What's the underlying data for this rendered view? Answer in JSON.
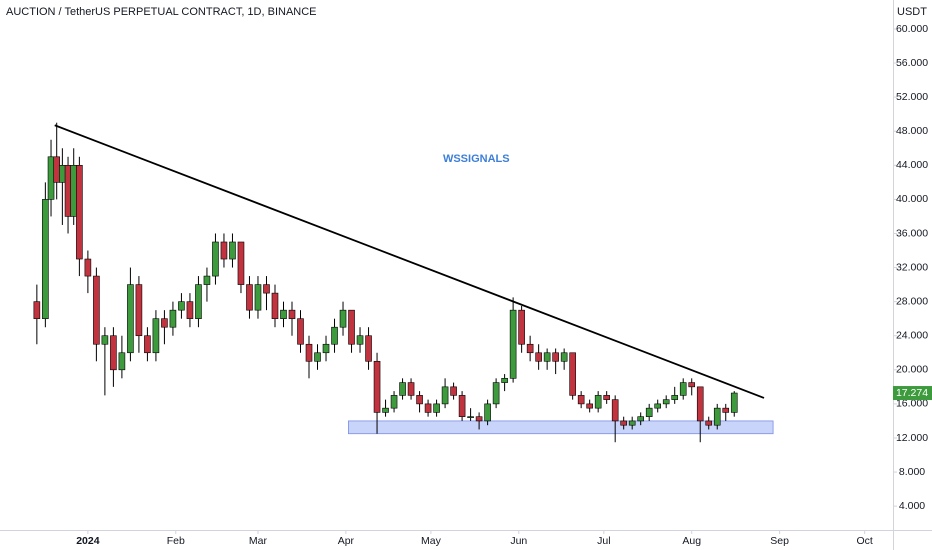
{
  "chart_data": {
    "type": "candlestick",
    "title": "AUCTION / TetherUS PERPETUAL CONTRACT, 1D, BINANCE",
    "y_axis_label": "USDT",
    "annotation": {
      "text": "WSSIGNALS",
      "x": 137,
      "y": 44.7,
      "color": "#3d7fd8"
    },
    "trendline": {
      "x": [
        -11.7,
        238.5
      ],
      "y": [
        48.7,
        16.7
      ],
      "color": "#000000"
    },
    "zone": {
      "x": [
        91.9,
        241.7
      ],
      "y": [
        12.5,
        14.0
      ],
      "color": "#c9d4fa",
      "border": "#7b8fe6"
    },
    "last_price": 17.274,
    "up_color": "#3d9a3d",
    "down_color": "#c23340",
    "xlim": [
      -31,
      284
    ],
    "xticks": [
      {
        "value": 0,
        "label": "2024"
      },
      {
        "value": 31,
        "label": "Feb"
      },
      {
        "value": 60,
        "label": "Mar"
      },
      {
        "value": 91,
        "label": "Apr"
      },
      {
        "value": 121,
        "label": "May"
      },
      {
        "value": 152,
        "label": "Jun"
      },
      {
        "value": 182,
        "label": "Jul"
      },
      {
        "value": 213,
        "label": "Aug"
      },
      {
        "value": 244,
        "label": "Sep"
      },
      {
        "value": 274,
        "label": "Oct"
      }
    ],
    "ylim": [
      1.2,
      63.4
    ],
    "yticks": [
      {
        "value": 4,
        "label": "4.000"
      },
      {
        "value": 8,
        "label": "8.000"
      },
      {
        "value": 12,
        "label": "12.000"
      },
      {
        "value": 16,
        "label": "16.000"
      },
      {
        "value": 20,
        "label": "20.000"
      },
      {
        "value": 24,
        "label": "24.000"
      },
      {
        "value": 28,
        "label": "28.000"
      },
      {
        "value": 32,
        "label": "32.000"
      },
      {
        "value": 36,
        "label": "36.000"
      },
      {
        "value": 40,
        "label": "40.000"
      },
      {
        "value": 44,
        "label": "44.000"
      },
      {
        "value": 48,
        "label": "48.000"
      },
      {
        "value": 52,
        "label": "52.000"
      },
      {
        "value": 56,
        "label": "56.000"
      },
      {
        "value": 60,
        "label": "60.000"
      }
    ],
    "x": [
      -18,
      -15,
      -13,
      -11,
      -9,
      -7,
      -5,
      -3,
      0,
      3,
      6,
      9,
      12,
      15,
      18,
      21,
      24,
      27,
      30,
      33,
      36,
      39,
      42,
      45,
      48,
      51,
      54,
      57,
      60,
      63,
      66,
      69,
      72,
      75,
      78,
      81,
      84,
      87,
      90,
      93,
      96,
      99,
      102,
      105,
      108,
      111,
      114,
      117,
      120,
      123,
      126,
      129,
      132,
      135,
      138,
      141,
      144,
      147,
      150,
      153,
      156,
      159,
      162,
      165,
      168,
      171,
      174,
      177,
      180,
      183,
      186,
      189,
      192,
      195,
      198,
      201,
      204,
      207,
      210,
      213,
      216,
      219,
      222,
      225,
      228
    ],
    "open": [
      28,
      26,
      40,
      45,
      42,
      44,
      38,
      44,
      33,
      31,
      23,
      24,
      20,
      22,
      30,
      24,
      22,
      26,
      25,
      27,
      28,
      26,
      30,
      31,
      35,
      33,
      35,
      30,
      27,
      30,
      29,
      26,
      27,
      26,
      23,
      21,
      22,
      23,
      25,
      27,
      23,
      24,
      21,
      15,
      15.5,
      17,
      18.5,
      17,
      16,
      15,
      16,
      18,
      17,
      14.5,
      14.5,
      14,
      16,
      18.5,
      19,
      27,
      23,
      22,
      21,
      22,
      21,
      22,
      17,
      16,
      15.5,
      17,
      16.5,
      14,
      13.5,
      14,
      14.5,
      15.5,
      16,
      16.5,
      17,
      18.5,
      18,
      14,
      13.5,
      15.5,
      15
    ],
    "high": [
      30,
      42,
      47,
      49,
      46,
      45,
      46,
      45,
      34,
      32,
      25,
      25,
      24,
      32,
      31,
      25,
      27,
      27,
      28,
      29,
      29,
      31,
      32,
      36,
      36,
      36,
      35,
      31,
      31,
      31,
      30,
      28,
      28,
      27,
      24,
      23,
      24,
      26,
      28,
      27,
      25,
      25,
      22,
      16.5,
      17.5,
      19,
      19,
      17.5,
      16.5,
      16.5,
      19,
      18.5,
      17.5,
      15.5,
      15,
      16.5,
      19,
      19.5,
      28.5,
      27.5,
      24,
      23,
      22.5,
      22.5,
      22.5,
      22,
      17.5,
      16.5,
      17.5,
      17.5,
      17,
      14.5,
      14.5,
      15,
      16,
      16.5,
      17,
      18,
      19,
      19,
      18,
      14.5,
      16,
      16,
      17.5
    ],
    "low": [
      23,
      25,
      38,
      40,
      37,
      36,
      37,
      31,
      29,
      21,
      17,
      18,
      19,
      21,
      22,
      21,
      21,
      23,
      24,
      26,
      25,
      25,
      28,
      30,
      32,
      32,
      29,
      26,
      26,
      27,
      25,
      25,
      24,
      22,
      19,
      20,
      21,
      22,
      24,
      22,
      22,
      20,
      12.5,
      14.5,
      15,
      16.5,
      16.5,
      15,
      14.5,
      14.5,
      15.5,
      16.5,
      14,
      14,
      13,
      13.5,
      15.5,
      17.5,
      18.5,
      22,
      21,
      20,
      20,
      19.5,
      20,
      16.5,
      15.5,
      15,
      15,
      16,
      11.5,
      13,
      13,
      13.5,
      14,
      15,
      15.5,
      16,
      16.5,
      17,
      11.5,
      13,
      13,
      14,
      14.5
    ],
    "close": [
      26,
      40,
      45,
      42,
      44,
      38,
      44,
      33,
      31,
      23,
      24,
      20,
      22,
      30,
      24,
      22,
      26,
      25,
      27,
      28,
      26,
      30,
      31,
      35,
      33,
      35,
      30,
      27,
      30,
      29,
      26,
      27,
      26,
      23,
      21,
      22,
      23,
      25,
      27,
      23,
      24,
      21,
      15,
      15.5,
      17,
      18.5,
      17,
      16,
      15,
      16,
      18,
      17,
      14.5,
      14.5,
      14,
      16,
      18.5,
      19,
      27,
      23,
      22,
      21,
      22,
      21,
      22,
      17,
      16,
      15.5,
      17,
      16.5,
      14,
      13.5,
      14,
      14.5,
      15.5,
      16,
      16.5,
      17,
      18.5,
      18,
      14,
      13.5,
      15.5,
      15,
      17.274
    ]
  }
}
